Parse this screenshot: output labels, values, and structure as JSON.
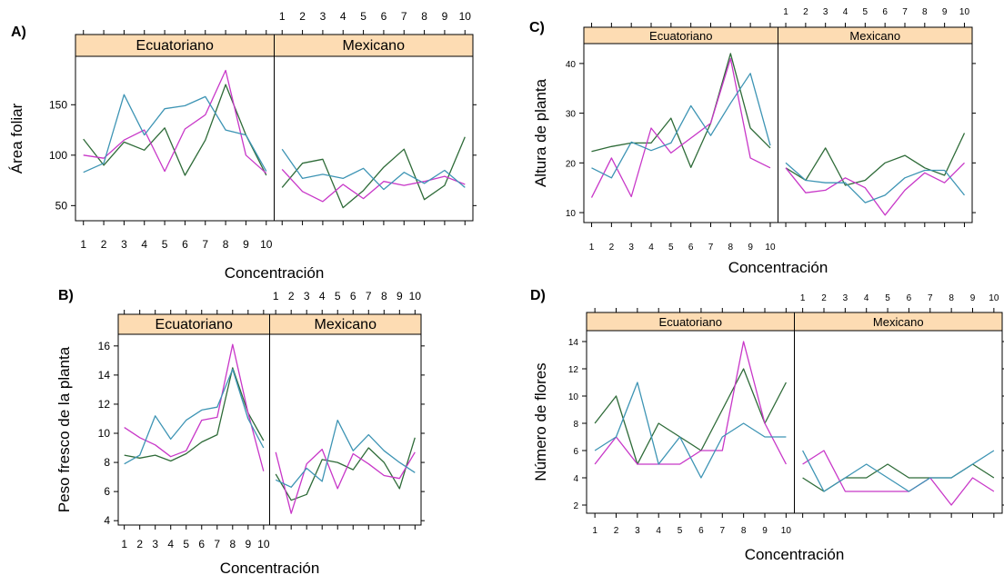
{
  "colors": {
    "series_a": "#2e6b38",
    "series_b": "#c837c8",
    "series_c": "#3d94b4",
    "strip_fill": "#fddcb3",
    "frame": "#000000"
  },
  "chart_data": [
    {
      "type": "line",
      "panel_letter": "A)",
      "xlabel": "Concentración",
      "ylabel": "Área foliar",
      "x": [
        1,
        2,
        3,
        4,
        5,
        6,
        7,
        8,
        9,
        10
      ],
      "x_ticks": [
        "1",
        "2",
        "3",
        "4",
        "5",
        "6",
        "7",
        "8",
        "9",
        "10"
      ],
      "ylim": [
        35,
        198
      ],
      "y_ticks": [
        50,
        100,
        150
      ],
      "grid": false,
      "panels": [
        {
          "strip": "Ecuatoriano",
          "series": [
            {
              "values": [
                116,
                90,
                113,
                105,
                127,
                80,
                115,
                170,
                120,
                80
              ]
            },
            {
              "values": [
                100,
                97,
                115,
                125,
                84,
                126,
                140,
                184,
                100,
                82
              ]
            },
            {
              "values": [
                83,
                92,
                160,
                120,
                146,
                149,
                158,
                125,
                120,
                84
              ]
            }
          ]
        },
        {
          "strip": "Mexicano",
          "series": [
            {
              "values": [
                68,
                92,
                96,
                48,
                65,
                88,
                106,
                56,
                70,
                118
              ]
            },
            {
              "values": [
                86,
                64,
                54,
                71,
                57,
                74,
                70,
                74,
                79,
                71
              ]
            },
            {
              "values": [
                106,
                77,
                81,
                77,
                87,
                66,
                83,
                72,
                85,
                68
              ]
            }
          ]
        }
      ]
    },
    {
      "type": "line",
      "panel_letter": "B)",
      "xlabel": "Concentración",
      "ylabel": "Peso fresco de la planta",
      "x": [
        1,
        2,
        3,
        4,
        5,
        6,
        7,
        8,
        9,
        10
      ],
      "x_ticks": [
        "1",
        "2",
        "3",
        "4",
        "5",
        "6",
        "7",
        "8",
        "9",
        "10"
      ],
      "ylim": [
        3.7,
        16.8
      ],
      "y_ticks": [
        4,
        6,
        8,
        10,
        12,
        14,
        16
      ],
      "grid": false,
      "panels": [
        {
          "strip": "Ecuatoriano",
          "series": [
            {
              "values": [
                8.5,
                8.3,
                8.5,
                8.1,
                8.6,
                9.4,
                9.9,
                14.5,
                11.4,
                9.5
              ]
            },
            {
              "values": [
                10.4,
                9.7,
                9.2,
                8.4,
                8.8,
                10.9,
                11.1,
                16.1,
                11.4,
                7.4
              ]
            },
            {
              "values": [
                7.9,
                8.5,
                11.2,
                9.6,
                10.9,
                11.6,
                11.8,
                14.4,
                11.0,
                9.0
              ]
            }
          ]
        },
        {
          "strip": "Mexicano",
          "series": [
            {
              "values": [
                7.2,
                5.4,
                5.8,
                8.2,
                8.0,
                7.5,
                9.0,
                8.0,
                6.2,
                9.7
              ]
            },
            {
              "values": [
                8.7,
                4.5,
                7.9,
                8.9,
                6.2,
                8.6,
                7.9,
                7.1,
                6.9,
                8.7
              ]
            },
            {
              "values": [
                6.8,
                6.3,
                7.6,
                6.7,
                10.9,
                8.8,
                9.9,
                8.8,
                8.0,
                7.3
              ]
            }
          ]
        }
      ]
    },
    {
      "type": "line",
      "panel_letter": "C)",
      "xlabel": "Concentración",
      "ylabel": "Altura de planta",
      "x": [
        1,
        2,
        3,
        4,
        5,
        6,
        7,
        8,
        9,
        10
      ],
      "x_ticks": [
        "1",
        "2",
        "3",
        "4",
        "5",
        "6",
        "7",
        "8",
        "9",
        "10"
      ],
      "ylim": [
        8,
        44
      ],
      "y_ticks": [
        10,
        20,
        30,
        40
      ],
      "grid": false,
      "panels": [
        {
          "strip": "Ecuatoriano",
          "series": [
            {
              "values": [
                22.3,
                23.3,
                24.0,
                24.0,
                29.0,
                19.1,
                28.0,
                42.0,
                27.0,
                23.0
              ]
            },
            {
              "values": [
                13.0,
                21.0,
                13.2,
                27.0,
                22.0,
                25.0,
                28.0,
                41.0,
                21.0,
                19.0
              ]
            },
            {
              "values": [
                19.0,
                17.0,
                24.2,
                22.5,
                24.0,
                31.5,
                25.5,
                32.0,
                38.0,
                23.5
              ]
            }
          ]
        },
        {
          "strip": "Mexicano",
          "series": [
            {
              "values": [
                19.0,
                16.5,
                23.0,
                15.5,
                16.5,
                20.0,
                21.5,
                19.0,
                17.5,
                26.0
              ]
            },
            {
              "values": [
                19.0,
                14.0,
                14.5,
                17.0,
                15.0,
                9.5,
                14.5,
                18.0,
                16.0,
                20.0
              ]
            },
            {
              "values": [
                20.0,
                16.5,
                16.0,
                16.0,
                12.0,
                13.5,
                17.0,
                18.5,
                18.5,
                13.5
              ]
            }
          ]
        }
      ]
    },
    {
      "type": "line",
      "panel_letter": "D)",
      "xlabel": "Concentración",
      "ylabel": "Número de flores",
      "x": [
        1,
        2,
        3,
        4,
        5,
        6,
        7,
        8,
        9,
        10
      ],
      "x_ticks": [
        "1",
        "2",
        "3",
        "4",
        "5",
        "6",
        "7",
        "8",
        "9",
        "10"
      ],
      "ylim": [
        1.4,
        14.8
      ],
      "y_ticks": [
        2,
        4,
        6,
        8,
        10,
        12,
        14
      ],
      "grid": false,
      "panels": [
        {
          "strip": "Ecuatoriano",
          "series": [
            {
              "values": [
                8,
                10,
                5,
                8,
                7,
                6,
                9,
                12,
                8,
                11
              ]
            },
            {
              "values": [
                5,
                7,
                5,
                5,
                5,
                6,
                6,
                14,
                8,
                5
              ]
            },
            {
              "values": [
                6,
                7,
                11,
                5,
                7,
                4,
                7,
                8,
                7,
                7
              ]
            }
          ]
        },
        {
          "strip": "Mexicano",
          "series": [
            {
              "values": [
                4,
                3,
                4,
                4,
                5,
                4,
                4,
                4,
                5,
                4
              ]
            },
            {
              "values": [
                5,
                6,
                3,
                3,
                3,
                3,
                4,
                2,
                4,
                3
              ]
            },
            {
              "values": [
                6,
                3,
                4,
                5,
                4,
                3,
                4,
                4,
                5,
                6
              ]
            }
          ]
        }
      ]
    }
  ]
}
